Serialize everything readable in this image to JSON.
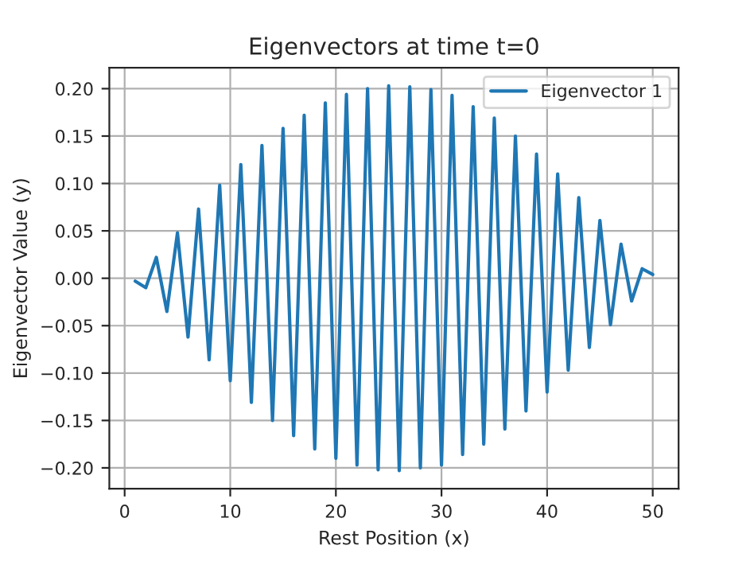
{
  "chart_data": {
    "type": "line",
    "title": "Eigenvectors at time t=0",
    "xlabel": "Rest Position (x)",
    "ylabel": "Eigenvector Value (y)",
    "x": [
      1,
      2,
      3,
      4,
      5,
      6,
      7,
      8,
      9,
      10,
      11,
      12,
      13,
      14,
      15,
      16,
      17,
      18,
      19,
      20,
      21,
      22,
      23,
      24,
      25,
      26,
      27,
      28,
      29,
      30,
      31,
      32,
      33,
      34,
      35,
      36,
      37,
      38,
      39,
      40,
      41,
      42,
      43,
      44,
      45,
      46,
      47,
      48,
      49,
      50
    ],
    "series": [
      {
        "name": "Eigenvector 1",
        "color": "#1f77b4",
        "values": [
          -0.003,
          -0.01,
          0.022,
          -0.035,
          0.048,
          -0.062,
          0.073,
          -0.086,
          0.098,
          -0.108,
          0.12,
          -0.131,
          0.14,
          -0.15,
          0.158,
          -0.166,
          0.172,
          -0.18,
          0.185,
          -0.19,
          0.194,
          -0.197,
          0.2,
          -0.202,
          0.203,
          -0.203,
          0.202,
          -0.2,
          0.199,
          -0.197,
          0.193,
          -0.186,
          0.181,
          -0.175,
          0.169,
          -0.159,
          0.15,
          -0.14,
          0.131,
          -0.12,
          0.11,
          -0.097,
          0.085,
          -0.073,
          0.061,
          -0.049,
          0.036,
          -0.024,
          0.01,
          0.004
        ]
      }
    ],
    "xlim": [
      -1.45,
      52.45
    ],
    "ylim": [
      -0.222,
      0.222
    ],
    "xticks": [
      0,
      10,
      20,
      30,
      40,
      50
    ],
    "yticks": [
      {
        "value": -0.2,
        "label": "−0.20"
      },
      {
        "value": -0.15,
        "label": "−0.15"
      },
      {
        "value": -0.1,
        "label": "−0.10"
      },
      {
        "value": -0.05,
        "label": "−0.05"
      },
      {
        "value": 0,
        "label": "0.00"
      },
      {
        "value": 0.05,
        "label": "0.05"
      },
      {
        "value": 0.1,
        "label": "0.10"
      },
      {
        "value": 0.15,
        "label": "0.15"
      },
      {
        "value": 0.2,
        "label": "0.20"
      }
    ],
    "grid": true,
    "legend": "top right",
    "marker": "none",
    "line_style": "solid"
  }
}
